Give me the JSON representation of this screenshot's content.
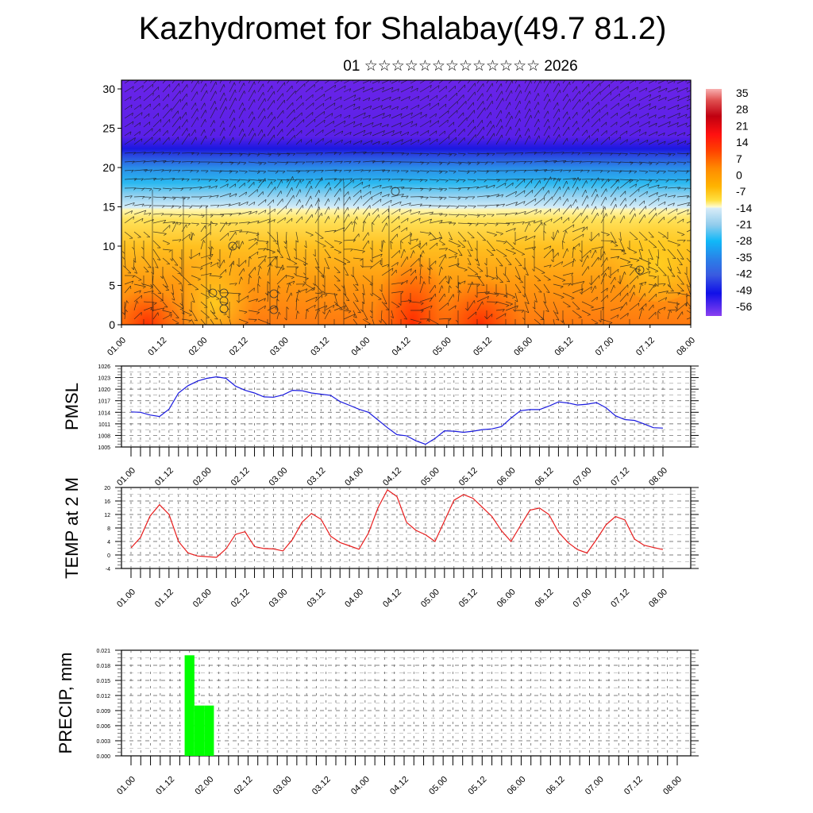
{
  "title": "Kazhydromet for Shalabay(49.7 81.2)",
  "subtitle": "01 ☆☆☆☆☆☆☆☆☆☆☆☆☆ 2026",
  "x_tick_labels": [
    "01.00",
    "01.12",
    "02.00",
    "02.12",
    "03.00",
    "03.12",
    "04.00",
    "04.12",
    "05.00",
    "05.12",
    "06.00",
    "06.12",
    "07.00",
    "07.12",
    "08.00"
  ],
  "colors": {
    "pmsl_line": "#1a1adf",
    "temp_line": "#e81c1c",
    "precip_bar": "#00ff00",
    "axis": "#000000",
    "grid": "#555555"
  },
  "chart_data": [
    {
      "id": "cross-section",
      "type": "heatmap",
      "title": "",
      "xlabel": "",
      "ylabel": "",
      "ylim": [
        0,
        31
      ],
      "y_ticks": [
        0,
        5,
        10,
        15,
        20,
        25,
        30
      ],
      "x_ticks": [
        "01.00",
        "01.12",
        "02.00",
        "02.12",
        "03.00",
        "03.12",
        "04.00",
        "04.12",
        "05.00",
        "05.12",
        "06.00",
        "06.12",
        "07.00",
        "07.12",
        "08.00"
      ],
      "description": "Temperature cross-section by height level with wind vectors overlaid",
      "colorbar": {
        "labels": [
          "35",
          "28",
          "21",
          "14",
          "7",
          "0",
          "-7",
          "-14",
          "-21",
          "-28",
          "-35",
          "-42",
          "-49",
          "-56"
        ],
        "range": [
          -63,
          42
        ]
      },
      "levels_temperature_profile": [
        {
          "level": 0,
          "value": 14
        },
        {
          "level": 5,
          "value": 10
        },
        {
          "level": 10,
          "value": 4
        },
        {
          "level": 14,
          "value": -8
        },
        {
          "level": 16,
          "value": -18
        },
        {
          "level": 18,
          "value": -30
        },
        {
          "level": 20,
          "value": -42
        },
        {
          "level": 22,
          "value": -56
        },
        {
          "level": 25,
          "value": -60
        },
        {
          "level": 31,
          "value": -62
        }
      ]
    },
    {
      "id": "pmsl",
      "type": "line",
      "title": "",
      "xlabel": "",
      "ylabel": "PMSL",
      "ylim": [
        1005,
        1026
      ],
      "y_ticks": [
        1005,
        1008,
        1011,
        1014,
        1017,
        1020,
        1023,
        1026
      ],
      "x_ticks": [
        "01.00",
        "01.12",
        "02.00",
        "02.12",
        "03.00",
        "03.12",
        "04.00",
        "04.12",
        "05.00",
        "05.12",
        "06.00",
        "06.12",
        "07.00",
        "07.12",
        "08.00"
      ],
      "x_step_hours": 3,
      "series": [
        {
          "name": "PMSL",
          "values": [
            1014.1,
            1014.0,
            1013.3,
            1012.9,
            1014.8,
            1019.0,
            1020.9,
            1022.1,
            1022.8,
            1023.2,
            1022.8,
            1020.8,
            1019.7,
            1019.0,
            1018.0,
            1017.9,
            1018.5,
            1019.7,
            1019.6,
            1019.0,
            1018.7,
            1018.4,
            1016.8,
            1015.8,
            1014.8,
            1014.0,
            1012.0,
            1010.0,
            1008.2,
            1007.9,
            1006.6,
            1005.7,
            1007.2,
            1009.2,
            1009.1,
            1008.8,
            1009.1,
            1009.5,
            1009.7,
            1010.3,
            1012.5,
            1014.4,
            1014.7,
            1014.7,
            1015.6,
            1016.7,
            1016.4,
            1015.9,
            1016.1,
            1016.5,
            1015.2,
            1013.1,
            1012.1,
            1011.9,
            1011.0,
            1010.0,
            1009.9
          ]
        }
      ]
    },
    {
      "id": "temp",
      "type": "line",
      "title": "",
      "xlabel": "",
      "ylabel": "TEMP at 2 M",
      "ylim": [
        -4,
        20
      ],
      "y_ticks": [
        -4,
        0,
        4,
        8,
        12,
        16,
        20
      ],
      "x_ticks": [
        "01.00",
        "01.12",
        "02.00",
        "02.12",
        "03.00",
        "03.12",
        "04.00",
        "04.12",
        "05.00",
        "05.12",
        "06.00",
        "06.12",
        "07.00",
        "07.12",
        "08.00"
      ],
      "x_step_hours": 3,
      "series": [
        {
          "name": "TEMP at 2 M",
          "values": [
            2.1,
            5.2,
            11.5,
            14.9,
            12.0,
            4.0,
            0.6,
            -0.3,
            -0.5,
            -0.7,
            1.8,
            6.1,
            6.9,
            2.5,
            1.9,
            1.8,
            1.2,
            4.6,
            9.7,
            12.3,
            10.6,
            5.6,
            3.7,
            2.7,
            1.7,
            6.5,
            14.0,
            19.3,
            17.3,
            9.7,
            7.3,
            6.0,
            4.0,
            10.1,
            16.2,
            17.9,
            16.8,
            14.1,
            11.4,
            7.2,
            4.0,
            8.7,
            13.3,
            13.9,
            12.0,
            6.8,
            3.7,
            1.6,
            0.6,
            4.6,
            8.9,
            11.4,
            10.4,
            4.7,
            2.9,
            2.2,
            1.6
          ]
        }
      ]
    },
    {
      "id": "precip",
      "type": "bar",
      "title": "",
      "xlabel": "",
      "ylabel": "PRECIP, mm",
      "ylim": [
        0,
        0.021
      ],
      "y_ticks": [
        "0.000",
        "0.003",
        "0.006",
        "0.009",
        "0.012",
        "0.015",
        "0.018",
        "0.021"
      ],
      "x_ticks": [
        "01.00",
        "01.12",
        "02.00",
        "02.12",
        "03.00",
        "03.12",
        "04.00",
        "04.12",
        "05.00",
        "05.12",
        "06.00",
        "06.12",
        "07.00",
        "07.12",
        "08.00"
      ],
      "x_step_hours": 3,
      "series": [
        {
          "name": "PRECIP",
          "values": [
            0,
            0,
            0,
            0,
            0,
            0,
            0.02,
            0.01,
            0.01,
            0,
            0,
            0,
            0,
            0,
            0,
            0,
            0,
            0,
            0,
            0,
            0,
            0,
            0,
            0,
            0,
            0,
            0,
            0,
            0,
            0,
            0,
            0,
            0,
            0,
            0,
            0,
            0,
            0,
            0,
            0,
            0,
            0,
            0,
            0,
            0,
            0,
            0,
            0,
            0,
            0,
            0,
            0,
            0,
            0,
            0,
            0,
            0
          ]
        }
      ]
    }
  ]
}
